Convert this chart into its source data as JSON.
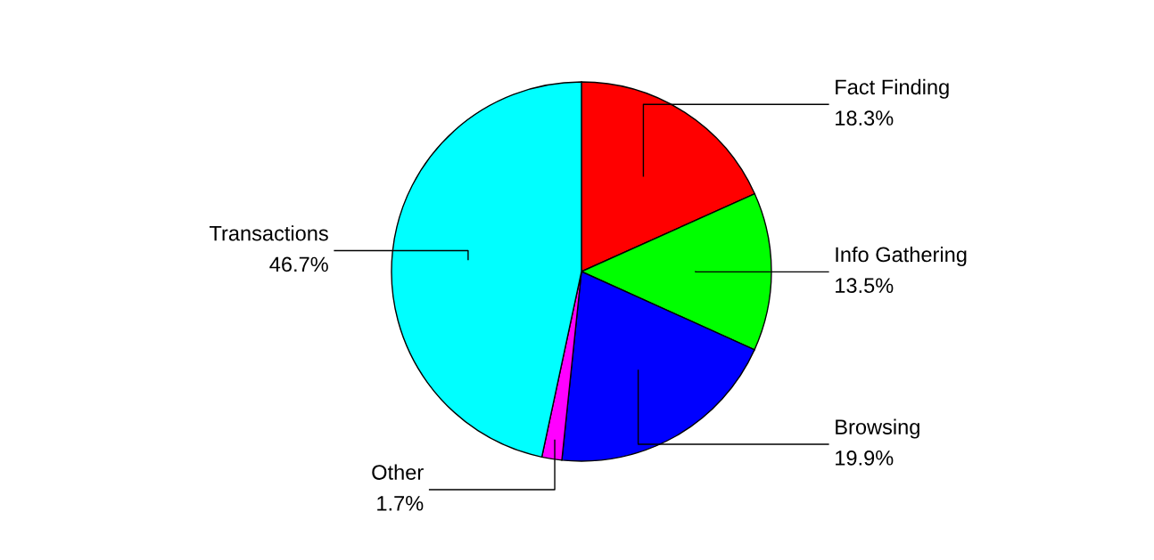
{
  "chart_data": {
    "type": "pie",
    "categories": [
      "Fact Finding",
      "Info Gathering",
      "Browsing",
      "Other",
      "Transactions"
    ],
    "values": [
      18.3,
      13.5,
      19.9,
      1.7,
      46.7
    ],
    "colors": [
      "#ff0000",
      "#00ff00",
      "#0000ff",
      "#ff00ff",
      "#00ffff"
    ],
    "value_labels": [
      "18.3%",
      "13.5%",
      "19.9%",
      "1.7%",
      "46.7%"
    ]
  }
}
